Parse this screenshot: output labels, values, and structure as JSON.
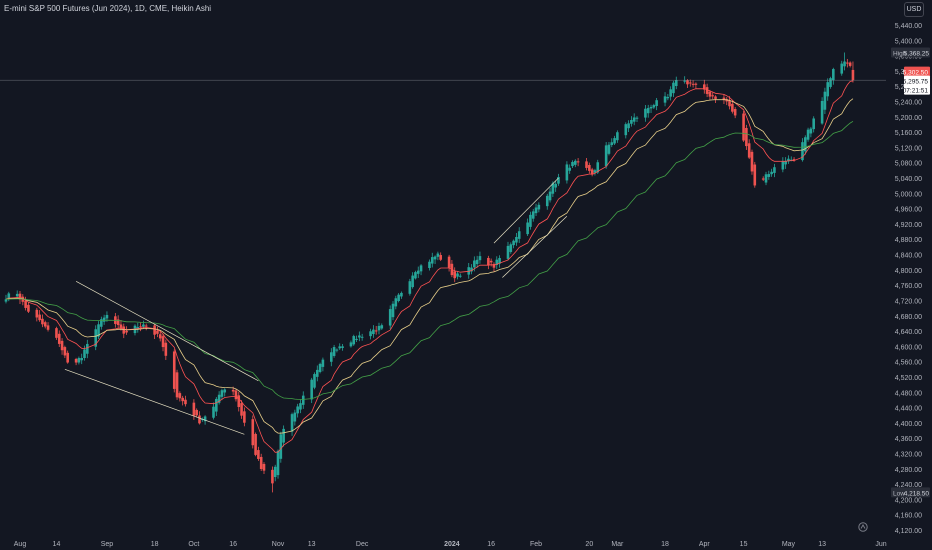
{
  "header": {
    "title": "E-mini S&P 500 Futures (Jun 2024), 1D, CME, Heikin Ashi",
    "currency": "USD"
  },
  "colors": {
    "background": "#131722",
    "up": "#26a69a",
    "down": "#ef5350",
    "ema_fast": "#ff5252",
    "ema_mid": "#e8cf8a",
    "ema_slow": "#43a047",
    "trendline": "#e6e0c2",
    "grid": "#1e222d"
  },
  "chart_data": {
    "type": "candlestick",
    "style": "heikin-ashi",
    "title": "E-mini S&P 500 Futures (Jun 2024), 1D, CME, Heikin Ashi",
    "ylim": [
      4120,
      5440
    ],
    "y_ticks": [
      "5,440.00",
      "5,400.00",
      "5,360.00",
      "5,320.00",
      "5,280.00",
      "5,240.00",
      "5,200.00",
      "5,160.00",
      "5,120.00",
      "5,080.00",
      "5,040.00",
      "5,000.00",
      "4,960.00",
      "4,920.00",
      "4,880.00",
      "4,840.00",
      "4,800.00",
      "4,760.00",
      "4,720.00",
      "4,680.00",
      "4,640.00",
      "4,600.00",
      "4,560.00",
      "4,520.00",
      "4,480.00",
      "4,440.00",
      "4,400.00",
      "4,360.00",
      "4,320.00",
      "4,280.00",
      "4,240.00",
      "4,200.00",
      "4,160.00",
      "4,120.00"
    ],
    "x_ticks": [
      {
        "label": "Aug",
        "date": "2023-08-01",
        "bold": false
      },
      {
        "label": "14",
        "date": "2023-08-14",
        "bold": false
      },
      {
        "label": "Sep",
        "date": "2023-09-01",
        "bold": false
      },
      {
        "label": "18",
        "date": "2023-09-18",
        "bold": false
      },
      {
        "label": "Oct",
        "date": "2023-10-02",
        "bold": false
      },
      {
        "label": "16",
        "date": "2023-10-16",
        "bold": false
      },
      {
        "label": "Nov",
        "date": "2023-11-01",
        "bold": false
      },
      {
        "label": "13",
        "date": "2023-11-13",
        "bold": false
      },
      {
        "label": "Dec",
        "date": "2023-12-01",
        "bold": false
      },
      {
        "label": "2024",
        "date": "2024-01-02",
        "bold": true
      },
      {
        "label": "16",
        "date": "2024-01-16",
        "bold": false
      },
      {
        "label": "Feb",
        "date": "2024-02-01",
        "bold": false
      },
      {
        "label": "20",
        "date": "2024-02-20",
        "bold": false
      },
      {
        "label": "Mar",
        "date": "2024-03-01",
        "bold": false
      },
      {
        "label": "18",
        "date": "2024-03-18",
        "bold": false
      },
      {
        "label": "Apr",
        "date": "2024-04-01",
        "bold": false
      },
      {
        "label": "15",
        "date": "2024-04-15",
        "bold": false
      },
      {
        "label": "May",
        "date": "2024-05-01",
        "bold": false
      },
      {
        "label": "13",
        "date": "2024-05-13",
        "bold": false
      },
      {
        "label": "Jun",
        "date": "2024-06-03",
        "bold": false
      }
    ],
    "anchors": [
      [
        "2023-07-27",
        4730
      ],
      [
        "2023-07-31",
        4740
      ],
      [
        "2023-08-03",
        4700
      ],
      [
        "2023-08-08",
        4665
      ],
      [
        "2023-08-15",
        4610
      ],
      [
        "2023-08-18",
        4555
      ],
      [
        "2023-08-23",
        4570
      ],
      [
        "2023-08-28",
        4650
      ],
      [
        "2023-09-01",
        4680
      ],
      [
        "2023-09-07",
        4635
      ],
      [
        "2023-09-14",
        4660
      ],
      [
        "2023-09-20",
        4620
      ],
      [
        "2023-09-26",
        4470
      ],
      [
        "2023-09-29",
        4450
      ],
      [
        "2023-10-04",
        4405
      ],
      [
        "2023-10-09",
        4440
      ],
      [
        "2023-10-12",
        4490
      ],
      [
        "2023-10-16",
        4485
      ],
      [
        "2023-10-20",
        4400
      ],
      [
        "2023-10-26",
        4280
      ],
      [
        "2023-10-30",
        4240
      ],
      [
        "2023-11-02",
        4370
      ],
      [
        "2023-11-08",
        4440
      ],
      [
        "2023-11-14",
        4530
      ],
      [
        "2023-11-20",
        4590
      ],
      [
        "2023-11-28",
        4620
      ],
      [
        "2023-12-04",
        4640
      ],
      [
        "2023-12-08",
        4650
      ],
      [
        "2023-12-13",
        4720
      ],
      [
        "2023-12-20",
        4800
      ],
      [
        "2023-12-28",
        4840
      ],
      [
        "2024-01-03",
        4780
      ],
      [
        "2024-01-05",
        4790
      ],
      [
        "2024-01-12",
        4830
      ],
      [
        "2024-01-17",
        4810
      ],
      [
        "2024-01-22",
        4860
      ],
      [
        "2024-01-30",
        4940
      ],
      [
        "2024-02-05",
        5000
      ],
      [
        "2024-02-12",
        5070
      ],
      [
        "2024-02-15",
        5080
      ],
      [
        "2024-02-21",
        5050
      ],
      [
        "2024-02-26",
        5120
      ],
      [
        "2024-03-04",
        5180
      ],
      [
        "2024-03-08",
        5200
      ],
      [
        "2024-03-13",
        5230
      ],
      [
        "2024-03-19",
        5250
      ],
      [
        "2024-03-22",
        5300
      ],
      [
        "2024-03-28",
        5285
      ],
      [
        "2024-04-02",
        5260
      ],
      [
        "2024-04-09",
        5240
      ],
      [
        "2024-04-12",
        5200
      ],
      [
        "2024-04-17",
        5100
      ],
      [
        "2024-04-19",
        5020
      ],
      [
        "2024-04-25",
        5060
      ],
      [
        "2024-04-30",
        5090
      ],
      [
        "2024-05-03",
        5080
      ],
      [
        "2024-05-08",
        5160
      ],
      [
        "2024-05-13",
        5240
      ],
      [
        "2024-05-17",
        5330
      ],
      [
        "2024-05-21",
        5350
      ],
      [
        "2024-05-23",
        5340
      ],
      [
        "2024-05-24",
        5300
      ]
    ],
    "trendlines": [
      {
        "from": [
          "2023-08-21",
          4770
        ],
        "to": [
          "2023-10-25",
          4510
        ]
      },
      {
        "from": [
          "2023-08-17",
          4540
        ],
        "to": [
          "2023-10-20",
          4370
        ]
      },
      {
        "from": [
          "2024-01-17",
          4870
        ],
        "to": [
          "2024-02-09",
          5040
        ]
      },
      {
        "from": [
          "2024-01-20",
          4780
        ],
        "to": [
          "2024-02-12",
          4940
        ]
      }
    ],
    "moving_averages": [
      {
        "color_key": "ema_fast",
        "period": 10
      },
      {
        "color_key": "ema_mid",
        "period": 20
      },
      {
        "color_key": "ema_slow",
        "period": 50
      }
    ],
    "current_price": 5295.75,
    "last_close": 5302.5,
    "current_label": "5,295.75",
    "last_label": "5,302.50",
    "countdown": "07:21:51",
    "high_value": 5368.25,
    "low_value": 4218.5,
    "high": {
      "tag": "High",
      "value": "5,368.25"
    },
    "low": {
      "tag": "Low",
      "value": "4,218.50"
    },
    "grid": false
  }
}
